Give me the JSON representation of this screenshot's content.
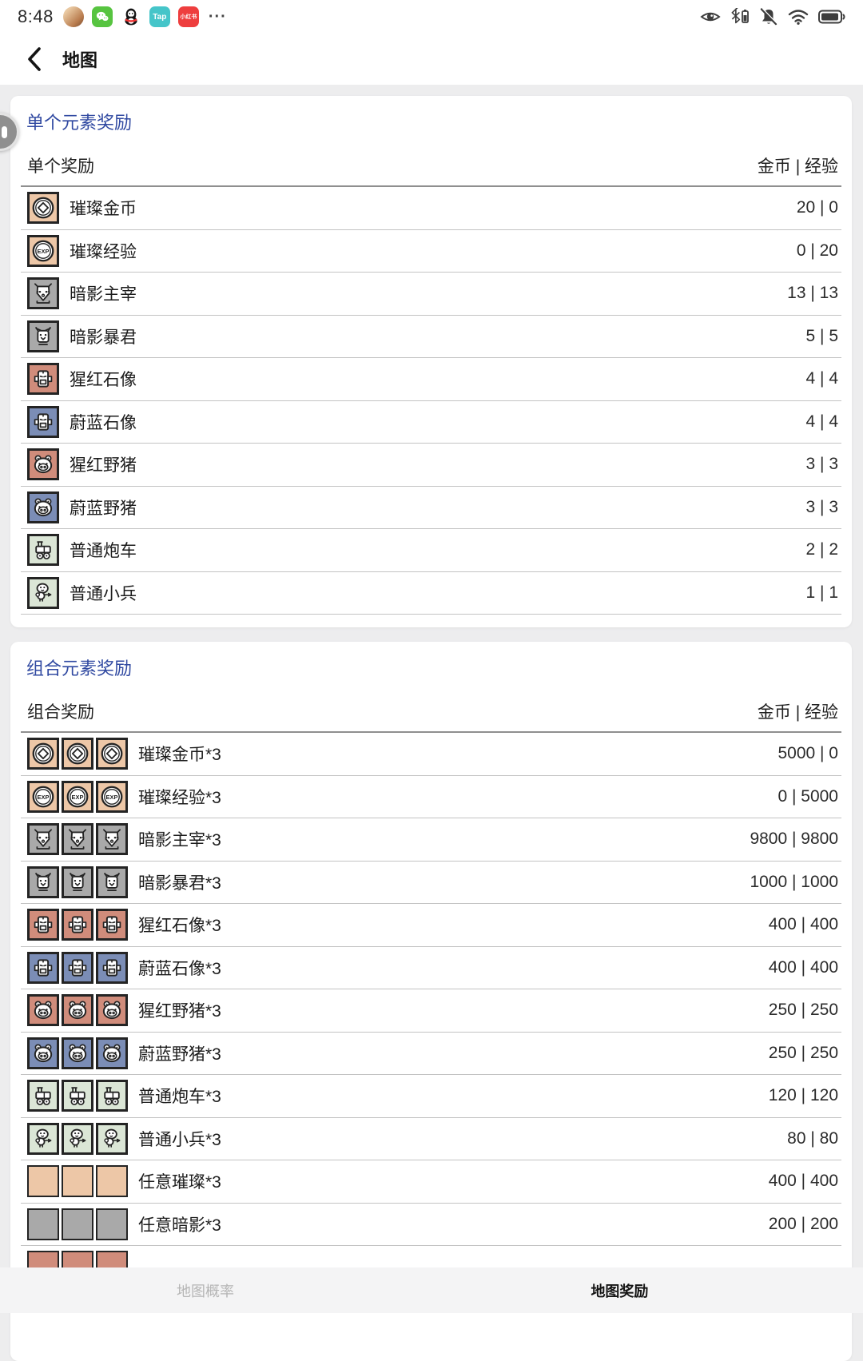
{
  "status_bar": {
    "time": "8:48",
    "app_icons": [
      {
        "name": "avatar"
      },
      {
        "name": "wechat"
      },
      {
        "name": "qq"
      },
      {
        "name": "tap",
        "label": "Tap"
      },
      {
        "name": "xiaohongshu",
        "label": "小红书"
      },
      {
        "name": "more",
        "label": "···"
      }
    ],
    "status_icons": [
      "eye",
      "bluetooth-battery",
      "mute-bell",
      "wifi",
      "battery"
    ]
  },
  "header": {
    "title": "地图"
  },
  "colors": {
    "accent": "#3049a1",
    "radiant": "#edc7a7",
    "shadow": "#a9a9a9",
    "scarlet": "#d08c7b",
    "azure": "#7b8db6",
    "plain": "#dbe6d6"
  },
  "sections": [
    {
      "title": "单个元素奖励",
      "col_left": "单个奖励",
      "col_right": "金币 | 经验",
      "rows": [
        {
          "icon": "coin",
          "tile": "radiant",
          "count": 1,
          "label": "璀璨金币",
          "value": "20 | 0"
        },
        {
          "icon": "exp",
          "tile": "radiant",
          "count": 1,
          "label": "璀璨经验",
          "value": "0 | 20"
        },
        {
          "icon": "demon-lord",
          "tile": "shadow",
          "count": 1,
          "label": "暗影主宰",
          "value": "13 | 13"
        },
        {
          "icon": "demon-tyrant",
          "tile": "shadow",
          "count": 1,
          "label": "暗影暴君",
          "value": "5 | 5"
        },
        {
          "icon": "statue",
          "tile": "scarlet",
          "count": 1,
          "label": "猩红石像",
          "value": "4 | 4"
        },
        {
          "icon": "statue",
          "tile": "azure",
          "count": 1,
          "label": "蔚蓝石像",
          "value": "4 | 4"
        },
        {
          "icon": "boar",
          "tile": "scarlet",
          "count": 1,
          "label": "猩红野猪",
          "value": "3 | 3"
        },
        {
          "icon": "boar",
          "tile": "azure",
          "count": 1,
          "label": "蔚蓝野猪",
          "value": "3 | 3"
        },
        {
          "icon": "cannon",
          "tile": "plain",
          "count": 1,
          "label": "普通炮车",
          "value": "2 | 2"
        },
        {
          "icon": "soldier",
          "tile": "plain",
          "count": 1,
          "label": "普通小兵",
          "value": "1 | 1"
        }
      ]
    },
    {
      "title": "组合元素奖励",
      "col_left": "组合奖励",
      "col_right": "金币 | 经验",
      "rows": [
        {
          "icon": "coin",
          "tile": "radiant",
          "count": 3,
          "label": "璀璨金币*3",
          "value": "5000 | 0"
        },
        {
          "icon": "exp",
          "tile": "radiant",
          "count": 3,
          "label": "璀璨经验*3",
          "value": "0 | 5000"
        },
        {
          "icon": "demon-lord",
          "tile": "shadow",
          "count": 3,
          "label": "暗影主宰*3",
          "value": "9800 | 9800"
        },
        {
          "icon": "demon-tyrant",
          "tile": "shadow",
          "count": 3,
          "label": "暗影暴君*3",
          "value": "1000 | 1000"
        },
        {
          "icon": "statue",
          "tile": "scarlet",
          "count": 3,
          "label": "猩红石像*3",
          "value": "400 | 400"
        },
        {
          "icon": "statue",
          "tile": "azure",
          "count": 3,
          "label": "蔚蓝石像*3",
          "value": "400 | 400"
        },
        {
          "icon": "boar",
          "tile": "scarlet",
          "count": 3,
          "label": "猩红野猪*3",
          "value": "250 | 250"
        },
        {
          "icon": "boar",
          "tile": "azure",
          "count": 3,
          "label": "蔚蓝野猪*3",
          "value": "250 | 250"
        },
        {
          "icon": "cannon",
          "tile": "plain",
          "count": 3,
          "label": "普通炮车*3",
          "value": "120 | 120"
        },
        {
          "icon": "soldier",
          "tile": "plain",
          "count": 3,
          "label": "普通小兵*3",
          "value": "80 | 80"
        },
        {
          "icon": "blank",
          "tile": "radiant",
          "count": 3,
          "label": "任意璀璨*3",
          "value": "400 | 400"
        },
        {
          "icon": "blank",
          "tile": "shadow",
          "count": 3,
          "label": "任意暗影*3",
          "value": "200 | 200"
        },
        {
          "icon": "blank",
          "tile": "scarlet",
          "count": 3,
          "label": "",
          "value": ""
        }
      ]
    }
  ],
  "footer": {
    "tabs": [
      {
        "label": "地图概率",
        "active": false
      },
      {
        "label": "地图奖励",
        "active": true
      }
    ]
  }
}
